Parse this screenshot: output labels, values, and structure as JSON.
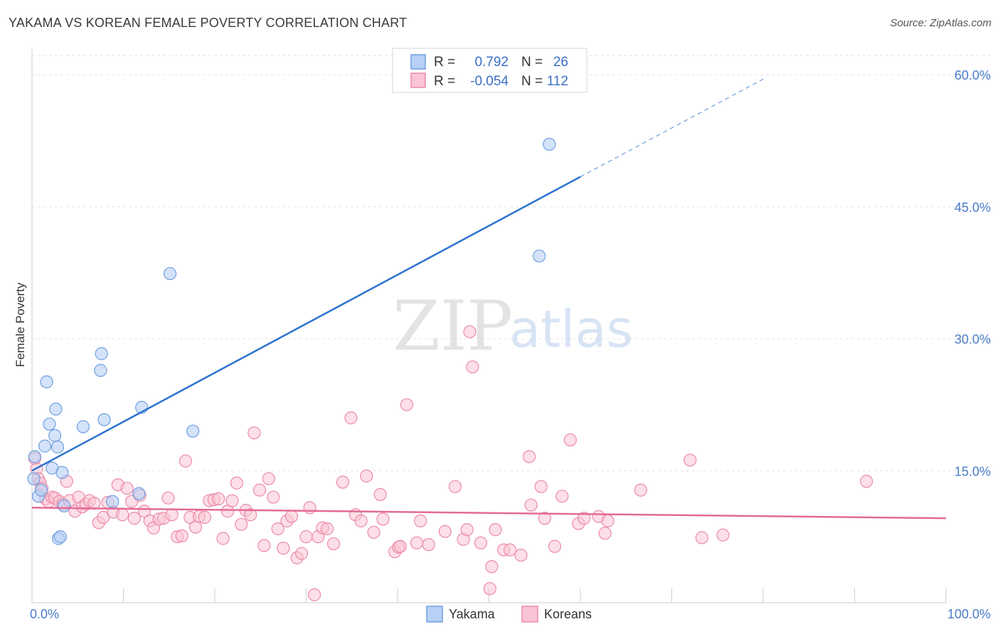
{
  "title": "YAKAMA VS KOREAN FEMALE POVERTY CORRELATION CHART",
  "source": "Source: ZipAtlas.com",
  "watermark": {
    "zip": "ZIP",
    "atlas": "atlas"
  },
  "colors": {
    "yakama_fill": "#b8d0f5",
    "yakama_stroke": "#6f9fe0",
    "yakama_line": "#2d73d0",
    "korean_fill": "#f9c4d4",
    "korean_stroke": "#eb8aa9",
    "korean_line": "#e36b93",
    "grid": "#e2e2e2",
    "axis": "#cccccc",
    "tick_label": "#4a7cc9"
  },
  "legend": {
    "rows": [
      {
        "r_label": "R =",
        "r_value": "0.792",
        "n_label": "N =",
        "n_value": "26"
      },
      {
        "r_label": "R =",
        "r_value": "-0.054",
        "n_label": "N =",
        "n_value": "112"
      }
    ]
  },
  "bottom_legend": {
    "yakama": "Yakama",
    "koreans": "Koreans"
  },
  "chart_data": {
    "type": "scatter",
    "title": "YAKAMA VS KOREAN FEMALE POVERTY CORRELATION CHART",
    "xlabel": "",
    "ylabel": "Female Poverty",
    "xlim": [
      0,
      100
    ],
    "ylim": [
      0,
      63
    ],
    "x_tick_labels": [
      "0.0%",
      "100.0%"
    ],
    "y_ticks": [
      15,
      30,
      45,
      60
    ],
    "y_tick_labels": [
      "15.0%",
      "30.0%",
      "45.0%",
      "60.0%"
    ],
    "grid": true,
    "series": [
      {
        "name": "Yakama",
        "r": 0.792,
        "n": 26,
        "trend": {
          "x0": 0,
          "y0": 15.0,
          "x1": 60,
          "y1": 48.4,
          "dashed_to_x": 80,
          "dashed_to_y": 59.5
        },
        "points": [
          [
            0.2,
            14.1
          ],
          [
            0.3,
            16.6
          ],
          [
            0.7,
            12.1
          ],
          [
            1.0,
            12.8
          ],
          [
            1.4,
            17.8
          ],
          [
            1.6,
            25.1
          ],
          [
            1.9,
            20.3
          ],
          [
            2.2,
            15.3
          ],
          [
            2.5,
            19.0
          ],
          [
            2.6,
            22.0
          ],
          [
            2.8,
            17.7
          ],
          [
            2.9,
            7.3
          ],
          [
            3.1,
            7.5
          ],
          [
            3.3,
            14.8
          ],
          [
            3.5,
            11.0
          ],
          [
            5.6,
            20.0
          ],
          [
            7.5,
            26.4
          ],
          [
            7.6,
            28.3
          ],
          [
            7.9,
            20.8
          ],
          [
            8.8,
            11.5
          ],
          [
            11.7,
            12.4
          ],
          [
            12.0,
            22.2
          ],
          [
            15.1,
            37.4
          ],
          [
            17.6,
            19.5
          ],
          [
            55.5,
            39.4
          ],
          [
            56.6,
            52.1
          ]
        ]
      },
      {
        "name": "Koreans",
        "r": -0.054,
        "n": 112,
        "trend": {
          "x0": 0,
          "y0": 10.8,
          "x1": 100,
          "y1": 9.6
        },
        "points": [
          [
            0.3,
            16.4
          ],
          [
            0.5,
            15.2
          ],
          [
            0.7,
            14.1
          ],
          [
            0.9,
            13.6
          ],
          [
            1.1,
            13.0
          ],
          [
            1.5,
            11.8
          ],
          [
            1.8,
            11.5
          ],
          [
            2.2,
            12.0
          ],
          [
            2.5,
            11.9
          ],
          [
            3.0,
            11.5
          ],
          [
            3.4,
            11.2
          ],
          [
            3.8,
            13.8
          ],
          [
            4.1,
            11.6
          ],
          [
            4.7,
            10.4
          ],
          [
            5.1,
            12.0
          ],
          [
            5.5,
            10.9
          ],
          [
            5.9,
            11.2
          ],
          [
            6.3,
            11.6
          ],
          [
            6.8,
            11.3
          ],
          [
            7.3,
            9.1
          ],
          [
            7.8,
            9.7
          ],
          [
            8.3,
            11.4
          ],
          [
            8.9,
            10.3
          ],
          [
            9.4,
            13.4
          ],
          [
            9.9,
            10.0
          ],
          [
            10.4,
            13.0
          ],
          [
            10.9,
            11.5
          ],
          [
            11.2,
            9.6
          ],
          [
            11.8,
            12.2
          ],
          [
            12.3,
            10.4
          ],
          [
            12.9,
            9.3
          ],
          [
            13.3,
            8.5
          ],
          [
            13.9,
            9.5
          ],
          [
            14.4,
            9.6
          ],
          [
            14.9,
            11.9
          ],
          [
            15.3,
            10.0
          ],
          [
            15.9,
            7.5
          ],
          [
            16.4,
            7.6
          ],
          [
            16.8,
            16.1
          ],
          [
            17.3,
            9.7
          ],
          [
            17.9,
            8.6
          ],
          [
            18.3,
            9.8
          ],
          [
            18.9,
            9.7
          ],
          [
            19.4,
            11.6
          ],
          [
            19.9,
            11.7
          ],
          [
            20.4,
            11.8
          ],
          [
            20.9,
            7.3
          ],
          [
            21.4,
            10.4
          ],
          [
            21.9,
            11.6
          ],
          [
            22.4,
            13.6
          ],
          [
            22.9,
            8.9
          ],
          [
            23.4,
            10.5
          ],
          [
            23.9,
            10.0
          ],
          [
            24.3,
            19.3
          ],
          [
            24.9,
            12.8
          ],
          [
            25.4,
            6.5
          ],
          [
            25.9,
            14.1
          ],
          [
            26.4,
            12.0
          ],
          [
            26.9,
            8.4
          ],
          [
            27.5,
            6.2
          ],
          [
            27.9,
            9.3
          ],
          [
            28.4,
            9.8
          ],
          [
            29.0,
            5.1
          ],
          [
            29.5,
            5.6
          ],
          [
            30.0,
            7.5
          ],
          [
            30.4,
            10.8
          ],
          [
            30.9,
            0.9
          ],
          [
            31.3,
            7.5
          ],
          [
            31.8,
            8.5
          ],
          [
            32.3,
            8.4
          ],
          [
            33.0,
            6.7
          ],
          [
            34.0,
            13.7
          ],
          [
            34.9,
            21.0
          ],
          [
            35.4,
            10.0
          ],
          [
            36.0,
            9.3
          ],
          [
            36.6,
            14.4
          ],
          [
            37.4,
            8.0
          ],
          [
            38.1,
            12.3
          ],
          [
            38.4,
            9.5
          ],
          [
            39.7,
            5.8
          ],
          [
            40.1,
            6.3
          ],
          [
            40.3,
            6.4
          ],
          [
            41.0,
            22.5
          ],
          [
            42.1,
            6.8
          ],
          [
            42.5,
            9.3
          ],
          [
            43.4,
            6.6
          ],
          [
            45.2,
            8.1
          ],
          [
            46.3,
            13.2
          ],
          [
            47.2,
            7.2
          ],
          [
            47.6,
            8.3
          ],
          [
            47.9,
            30.8
          ],
          [
            48.2,
            26.8
          ],
          [
            49.1,
            6.8
          ],
          [
            50.3,
            4.1
          ],
          [
            50.7,
            8.3
          ],
          [
            51.6,
            6.0
          ],
          [
            52.3,
            6.0
          ],
          [
            53.5,
            5.4
          ],
          [
            54.4,
            16.6
          ],
          [
            54.6,
            11.1
          ],
          [
            55.7,
            13.2
          ],
          [
            56.1,
            9.6
          ],
          [
            57.2,
            6.4
          ],
          [
            58.0,
            12.1
          ],
          [
            58.9,
            18.5
          ],
          [
            59.8,
            9.0
          ],
          [
            60.4,
            9.6
          ],
          [
            62.0,
            9.8
          ],
          [
            62.7,
            7.9
          ],
          [
            63.0,
            9.3
          ],
          [
            66.6,
            12.8
          ],
          [
            72.0,
            16.2
          ],
          [
            73.3,
            7.4
          ],
          [
            75.6,
            7.7
          ],
          [
            91.3,
            13.8
          ],
          [
            50.1,
            1.6
          ]
        ]
      }
    ]
  }
}
